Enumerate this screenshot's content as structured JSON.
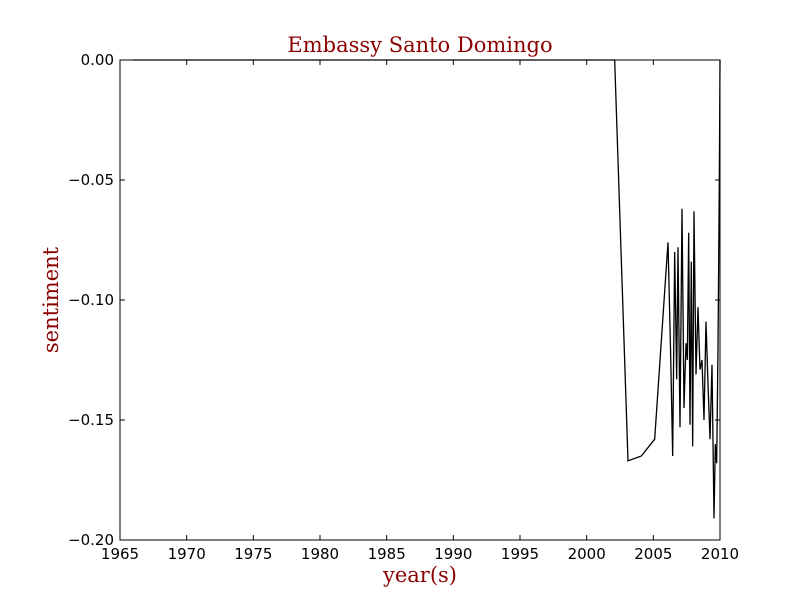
{
  "chart_data": {
    "type": "line",
    "title": "Embassy Santo Domingo",
    "xlabel": "year(s)",
    "ylabel": "sentiment",
    "xlim": [
      1965,
      2010
    ],
    "ylim": [
      -0.2,
      0.0
    ],
    "xticks": [
      1965,
      1970,
      1975,
      1980,
      1985,
      1990,
      1995,
      2000,
      2005,
      2010
    ],
    "xtick_labels": [
      "1965",
      "1970",
      "1975",
      "1980",
      "1985",
      "1990",
      "1995",
      "2000",
      "2005",
      "2010"
    ],
    "yticks": [
      0.0,
      -0.05,
      -0.1,
      -0.15,
      -0.2
    ],
    "ytick_labels": [
      "0.00",
      "−0.05",
      "−0.10",
      "−0.15",
      "−0.20"
    ],
    "grid": false,
    "colors": {
      "line": "#000000",
      "title": "#8b0000",
      "axis_label": "#8b0000"
    },
    "series": [
      {
        "x": [
          1966.0,
          2002.1,
          2003.1,
          2004.1,
          2005.1,
          2006.1,
          2006.3,
          2006.45,
          2006.6,
          2006.75,
          2006.85,
          2007.0,
          2007.15,
          2007.3,
          2007.45,
          2007.55,
          2007.65,
          2007.75,
          2007.85,
          2007.95,
          2008.05,
          2008.2,
          2008.35,
          2008.5,
          2008.65,
          2008.8,
          2008.95,
          2009.1,
          2009.25,
          2009.4,
          2009.55,
          2009.65,
          2009.75,
          2009.85,
          2009.95,
          2010.0
        ],
        "y": [
          0.0,
          0.0,
          -0.167,
          -0.165,
          -0.158,
          -0.076,
          -0.123,
          -0.165,
          -0.08,
          -0.133,
          -0.078,
          -0.153,
          -0.062,
          -0.145,
          -0.118,
          -0.125,
          -0.072,
          -0.152,
          -0.084,
          -0.161,
          -0.063,
          -0.131,
          -0.103,
          -0.129,
          -0.125,
          -0.15,
          -0.109,
          -0.135,
          -0.158,
          -0.127,
          -0.191,
          -0.16,
          -0.168,
          -0.12,
          -0.05,
          0.0
        ]
      }
    ]
  }
}
